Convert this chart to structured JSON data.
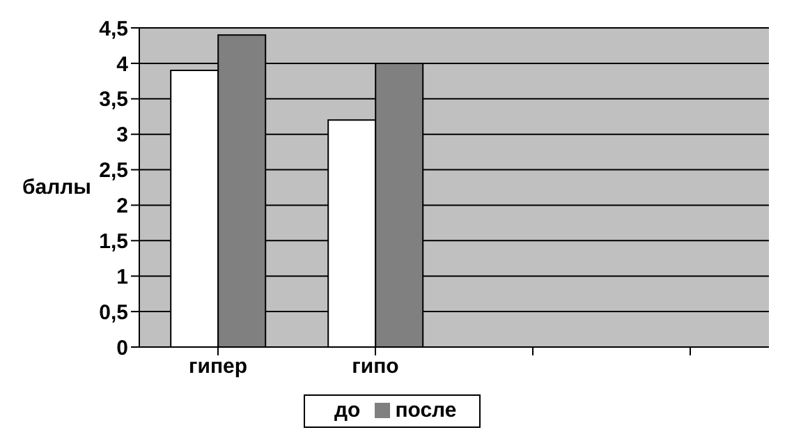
{
  "chart_data": {
    "type": "bar",
    "ylabel": "баллы",
    "categories": [
      "гипер",
      "гипо",
      null,
      null
    ],
    "series": [
      {
        "name": "до",
        "color": "#ffffff",
        "values": [
          3.9,
          3.2,
          null,
          null
        ]
      },
      {
        "name": "после",
        "color": "#808080",
        "values": [
          4.4,
          4.0,
          null,
          null
        ]
      }
    ],
    "ylim": [
      0,
      4.5
    ],
    "yticks": [
      0,
      {
        "value": 0.5,
        "label": "0,5"
      },
      1,
      {
        "value": 1.5,
        "label": "1,5"
      },
      2,
      {
        "value": 2.5,
        "label": "2,5"
      },
      3,
      {
        "value": 3.5,
        "label": "3,5"
      },
      4,
      {
        "value": 4.5,
        "label": "4,5"
      }
    ],
    "grid": "y",
    "legend": "bottom"
  }
}
